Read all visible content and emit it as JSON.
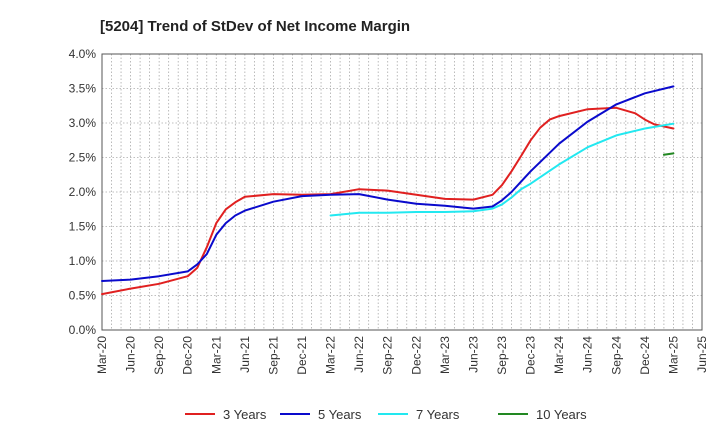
{
  "chart_data": {
    "type": "line",
    "title": "[5204]  Trend of StDev of Net Income Margin",
    "xlabel": "",
    "ylabel": "",
    "x_ticks": [
      "Mar-20",
      "Jun-20",
      "Sep-20",
      "Dec-20",
      "Mar-21",
      "Jun-21",
      "Sep-21",
      "Dec-21",
      "Mar-22",
      "Jun-22",
      "Sep-22",
      "Dec-22",
      "Mar-23",
      "Jun-23",
      "Sep-23",
      "Dec-23",
      "Mar-24",
      "Jun-24",
      "Sep-24",
      "Dec-24",
      "Mar-25",
      "Jun-25"
    ],
    "y_ticks": [
      "0.0%",
      "0.5%",
      "1.0%",
      "1.5%",
      "2.0%",
      "2.5%",
      "3.0%",
      "3.5%",
      "4.0%"
    ],
    "ylim": [
      0,
      4.0
    ],
    "y_unit": "%",
    "grid": true,
    "legend_position": "bottom",
    "series": [
      {
        "name": "3 Years",
        "color": "#e02020",
        "points": [
          [
            "Mar-20",
            0.52
          ],
          [
            "Jun-20",
            0.6
          ],
          [
            "Sep-20",
            0.67
          ],
          [
            "Dec-20",
            0.78
          ],
          [
            "Jan-21",
            0.9
          ],
          [
            "Feb-21",
            1.2
          ],
          [
            "Mar-21",
            1.55
          ],
          [
            "Apr-21",
            1.75
          ],
          [
            "May-21",
            1.85
          ],
          [
            "Jun-21",
            1.93
          ],
          [
            "Sep-21",
            1.97
          ],
          [
            "Dec-21",
            1.96
          ],
          [
            "Mar-22",
            1.97
          ],
          [
            "Jun-22",
            2.04
          ],
          [
            "Sep-22",
            2.02
          ],
          [
            "Dec-22",
            1.96
          ],
          [
            "Mar-23",
            1.9
          ],
          [
            "Jun-23",
            1.89
          ],
          [
            "Aug-23",
            1.96
          ],
          [
            "Sep-23",
            2.1
          ],
          [
            "Oct-23",
            2.3
          ],
          [
            "Nov-23",
            2.52
          ],
          [
            "Dec-23",
            2.75
          ],
          [
            "Jan-24",
            2.93
          ],
          [
            "Feb-24",
            3.05
          ],
          [
            "Mar-24",
            3.1
          ],
          [
            "Jun-24",
            3.2
          ],
          [
            "Sep-24",
            3.22
          ],
          [
            "Nov-24",
            3.14
          ],
          [
            "Dec-24",
            3.05
          ],
          [
            "Jan-25",
            2.98
          ],
          [
            "Mar-25",
            2.92
          ]
        ]
      },
      {
        "name": "5 Years",
        "color": "#0a0acc",
        "points": [
          [
            "Mar-20",
            0.71
          ],
          [
            "Jun-20",
            0.73
          ],
          [
            "Sep-20",
            0.78
          ],
          [
            "Dec-20",
            0.85
          ],
          [
            "Jan-21",
            0.95
          ],
          [
            "Feb-21",
            1.1
          ],
          [
            "Mar-21",
            1.38
          ],
          [
            "Apr-21",
            1.55
          ],
          [
            "May-21",
            1.66
          ],
          [
            "Jun-21",
            1.73
          ],
          [
            "Sep-21",
            1.86
          ],
          [
            "Dec-21",
            1.94
          ],
          [
            "Mar-22",
            1.96
          ],
          [
            "Jun-22",
            1.97
          ],
          [
            "Sep-22",
            1.89
          ],
          [
            "Dec-22",
            1.83
          ],
          [
            "Mar-23",
            1.8
          ],
          [
            "Jun-23",
            1.76
          ],
          [
            "Aug-23",
            1.79
          ],
          [
            "Sep-23",
            1.88
          ],
          [
            "Oct-23",
            2.0
          ],
          [
            "Nov-23",
            2.15
          ],
          [
            "Dec-23",
            2.3
          ],
          [
            "Mar-24",
            2.7
          ],
          [
            "Jun-24",
            3.02
          ],
          [
            "Sep-24",
            3.27
          ],
          [
            "Dec-24",
            3.43
          ],
          [
            "Mar-25",
            3.53
          ]
        ]
      },
      {
        "name": "7 Years",
        "color": "#22e8f0",
        "points": [
          [
            "Mar-22",
            1.66
          ],
          [
            "Jun-22",
            1.7
          ],
          [
            "Sep-22",
            1.7
          ],
          [
            "Dec-22",
            1.71
          ],
          [
            "Mar-23",
            1.71
          ],
          [
            "Jun-23",
            1.72
          ],
          [
            "Aug-23",
            1.76
          ],
          [
            "Sep-23",
            1.82
          ],
          [
            "Oct-23",
            1.92
          ],
          [
            "Nov-23",
            2.04
          ],
          [
            "Dec-23",
            2.12
          ],
          [
            "Mar-24",
            2.4
          ],
          [
            "Jun-24",
            2.65
          ],
          [
            "Sep-24",
            2.82
          ],
          [
            "Dec-24",
            2.92
          ],
          [
            "Mar-25",
            2.99
          ]
        ]
      },
      {
        "name": "10 Years",
        "color": "#228822",
        "points": [
          [
            "Feb-25",
            2.54
          ],
          [
            "Mar-25",
            2.56
          ]
        ]
      }
    ]
  }
}
